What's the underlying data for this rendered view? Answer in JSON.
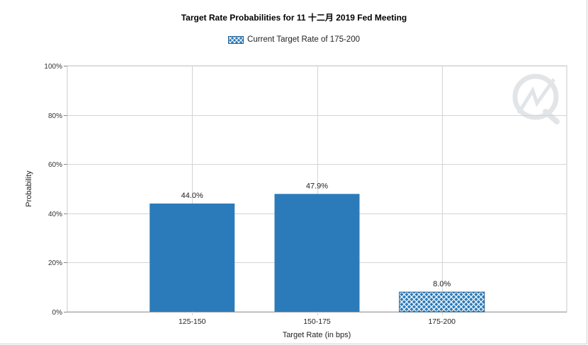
{
  "chart_data": {
    "type": "bar",
    "title": "Target Rate Probabilities for 11 十二月 2019 Fed Meeting",
    "xlabel": "Target Rate (in bps)",
    "ylabel": "Probability",
    "categories": [
      "125-150",
      "150-175",
      "175-200"
    ],
    "values": [
      44.0,
      47.9,
      8.0
    ],
    "value_labels": [
      "44.0%",
      "47.9%",
      "8.0%"
    ],
    "ylim": [
      0,
      100
    ],
    "yticks": [
      0,
      20,
      40,
      60,
      80,
      100
    ],
    "ytick_labels": [
      "0%",
      "20%",
      "40%",
      "60%",
      "80%",
      "100%"
    ],
    "grid": true,
    "legend": {
      "placement": "top-center",
      "entries": [
        {
          "label": "Current Target Rate of 175-200",
          "pattern": "crosshatch"
        }
      ]
    },
    "highlight_category": "175-200",
    "bar_color": "#2b7bba"
  },
  "watermark": "logo-watermark"
}
